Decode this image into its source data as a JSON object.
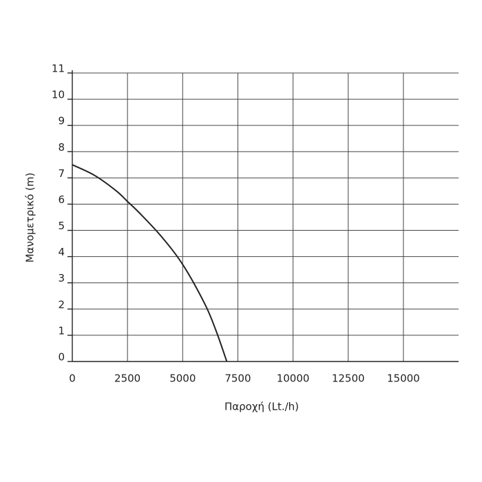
{
  "chart_data": {
    "type": "line",
    "x_label": "Παροχή (Lt./h)",
    "y_label": "Μανομετρικό  (m)",
    "x": [
      0,
      1000,
      2000,
      2500,
      3000,
      4000,
      5000,
      6000,
      6500,
      7000
    ],
    "values": [
      7.5,
      7.1,
      6.5,
      6.1,
      5.7,
      4.8,
      3.7,
      2.2,
      1.2,
      0
    ],
    "color": "#222222",
    "xlim": [
      0,
      17500
    ],
    "xticks": [
      0,
      2500,
      5000,
      7500,
      10000,
      12500,
      15000
    ],
    "ylim": [
      0,
      11
    ],
    "yticks": [
      0,
      1,
      2,
      3,
      4,
      5,
      6,
      7,
      8,
      9,
      10,
      11
    ],
    "grid": true
  }
}
